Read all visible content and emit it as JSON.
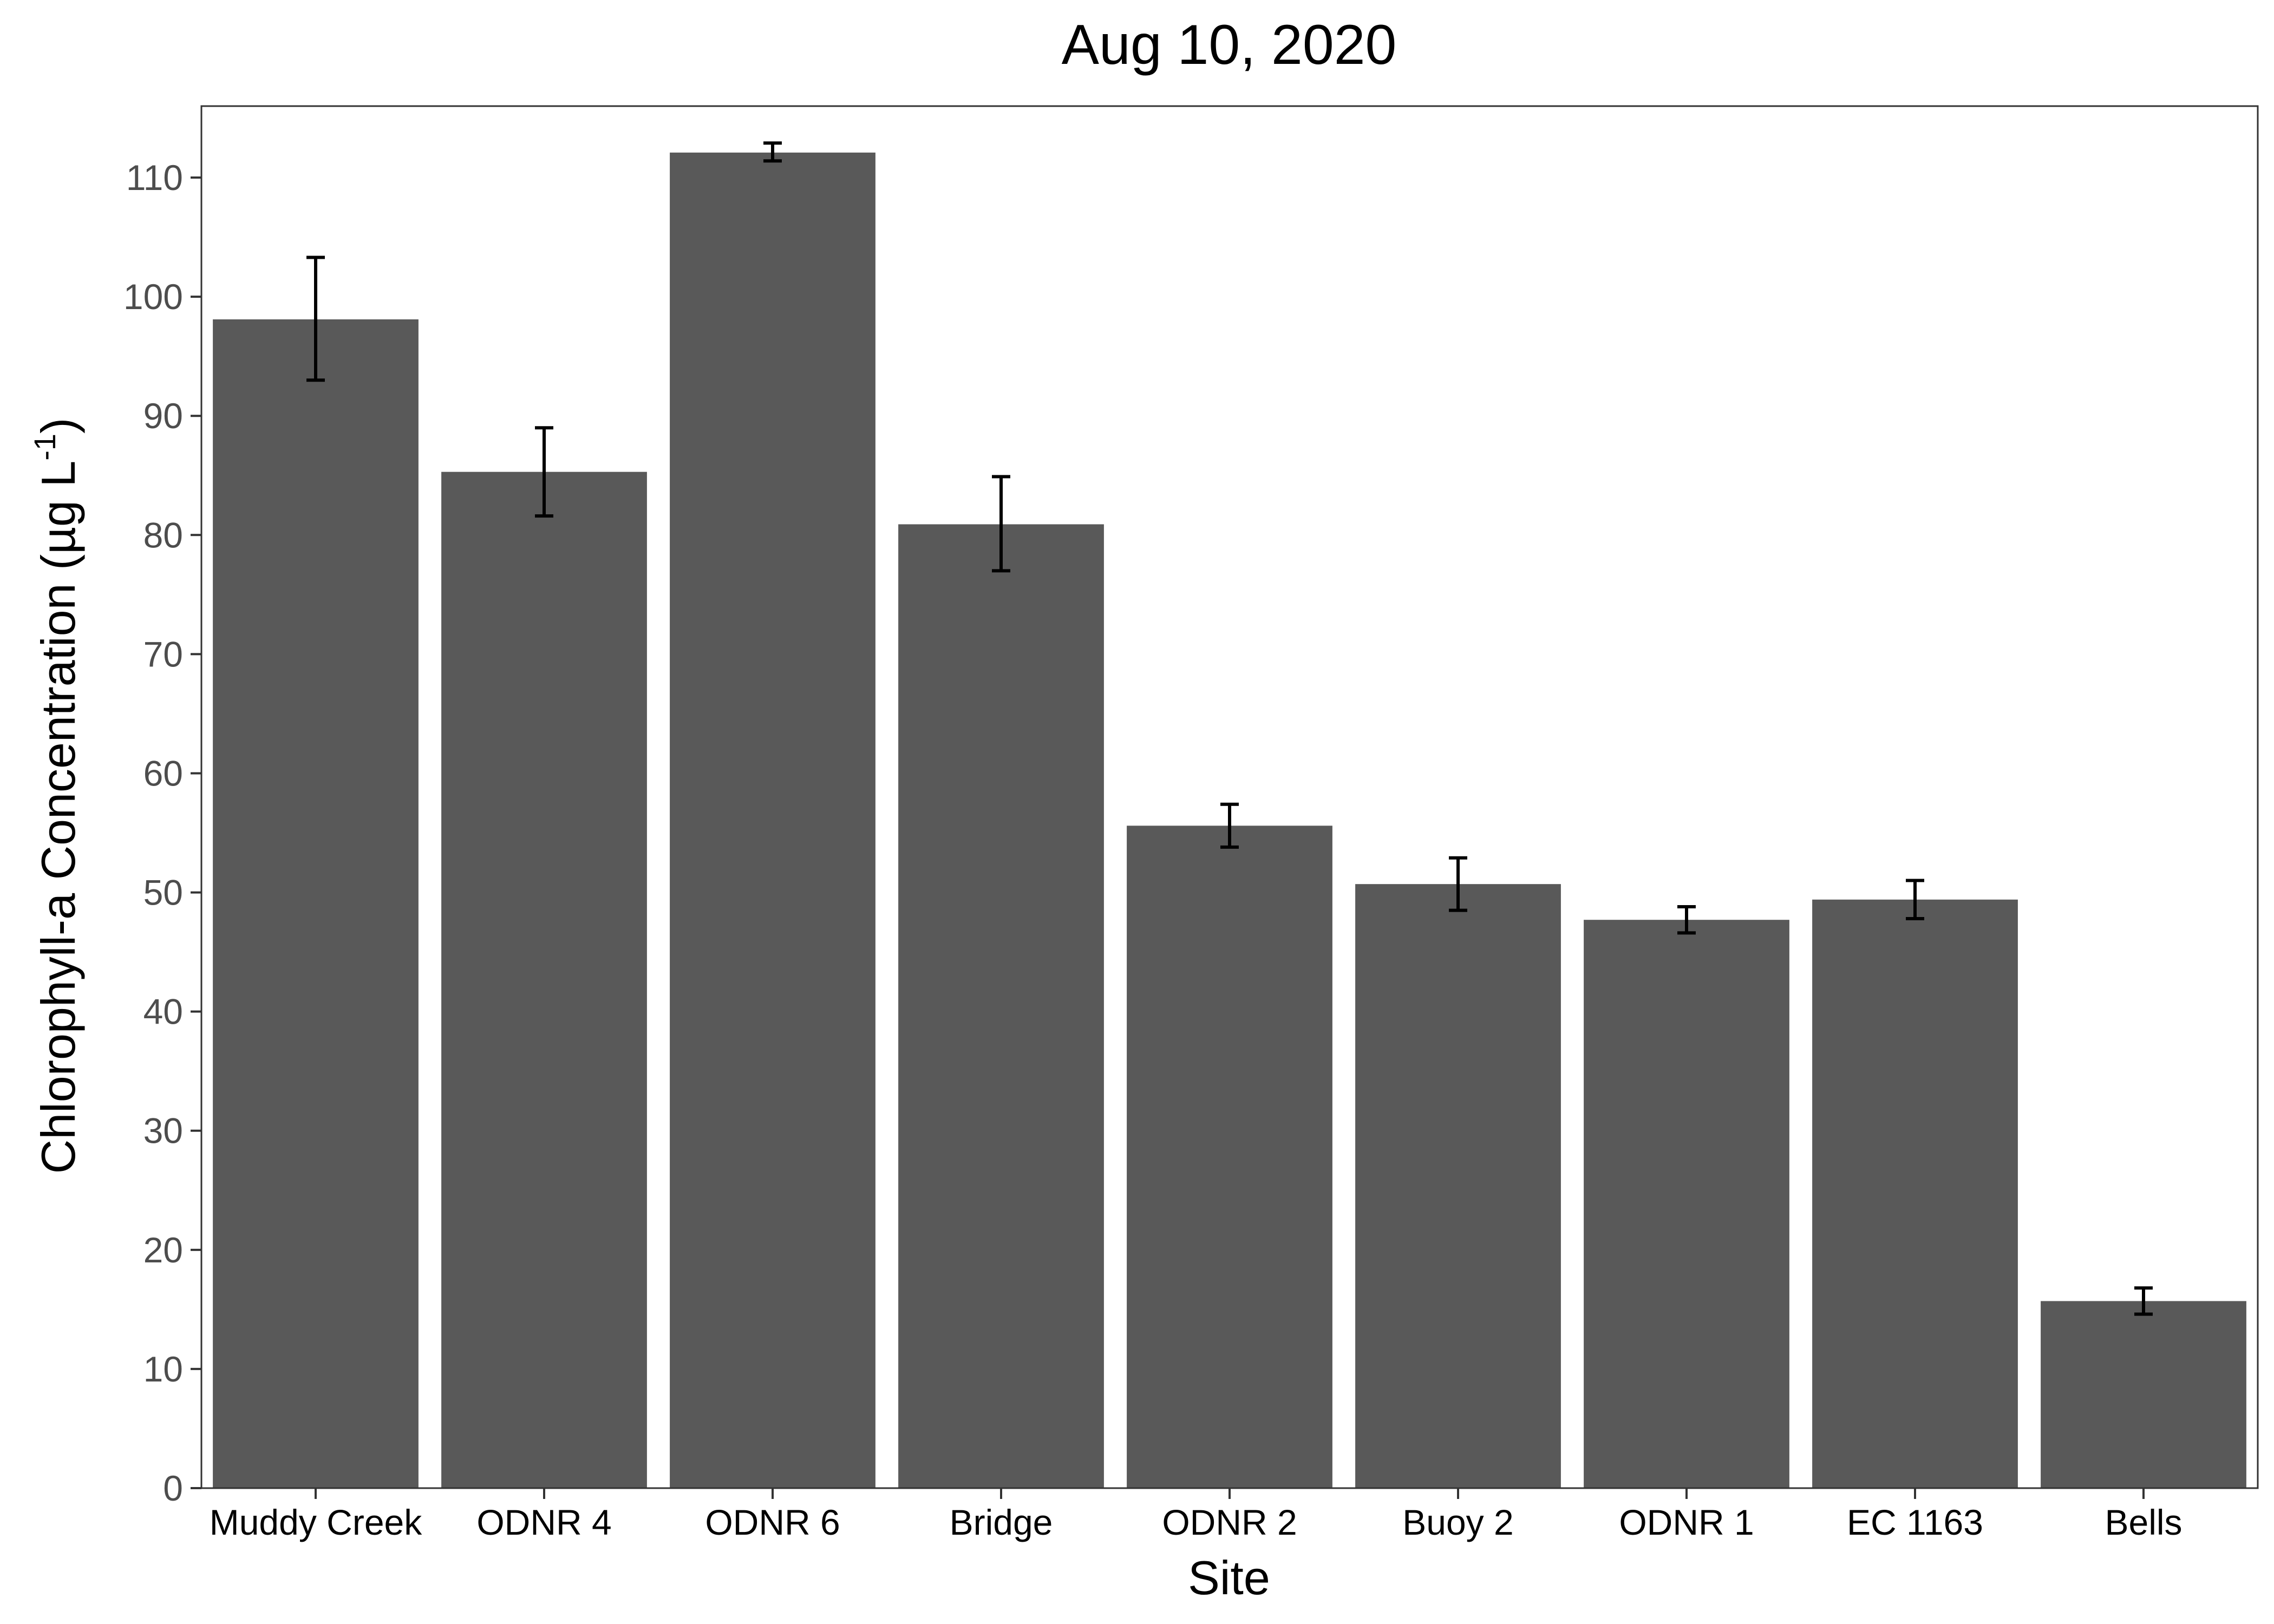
{
  "chart_data": {
    "type": "bar",
    "title": "Aug 10, 2020",
    "xlabel": "Site",
    "ylabel": "Chlorophyll-a Concentration (µg L",
    "ylabel_superscript": "-1",
    "ylabel_suffix": ")",
    "categories": [
      "Muddy Creek",
      "ODNR 4",
      "ODNR 6",
      "Bridge",
      "ODNR 2",
      "Buoy 2",
      "ODNR 1",
      "EC 1163",
      "Bells"
    ],
    "values": [
      98.1,
      85.3,
      112.1,
      80.9,
      55.6,
      50.7,
      47.7,
      49.4,
      15.7
    ],
    "error_low": [
      93.0,
      81.6,
      111.4,
      77.0,
      53.8,
      48.5,
      46.6,
      47.8,
      14.6
    ],
    "error_high": [
      103.3,
      89.0,
      112.9,
      84.9,
      57.4,
      52.9,
      48.8,
      51.0,
      16.8
    ],
    "yticks": [
      0,
      10,
      20,
      30,
      40,
      50,
      60,
      70,
      80,
      90,
      100,
      110
    ],
    "ylim": [
      0,
      116
    ],
    "grid": false,
    "legend": "none",
    "bar_color": "#595959",
    "error_bar_color": "#000000"
  }
}
